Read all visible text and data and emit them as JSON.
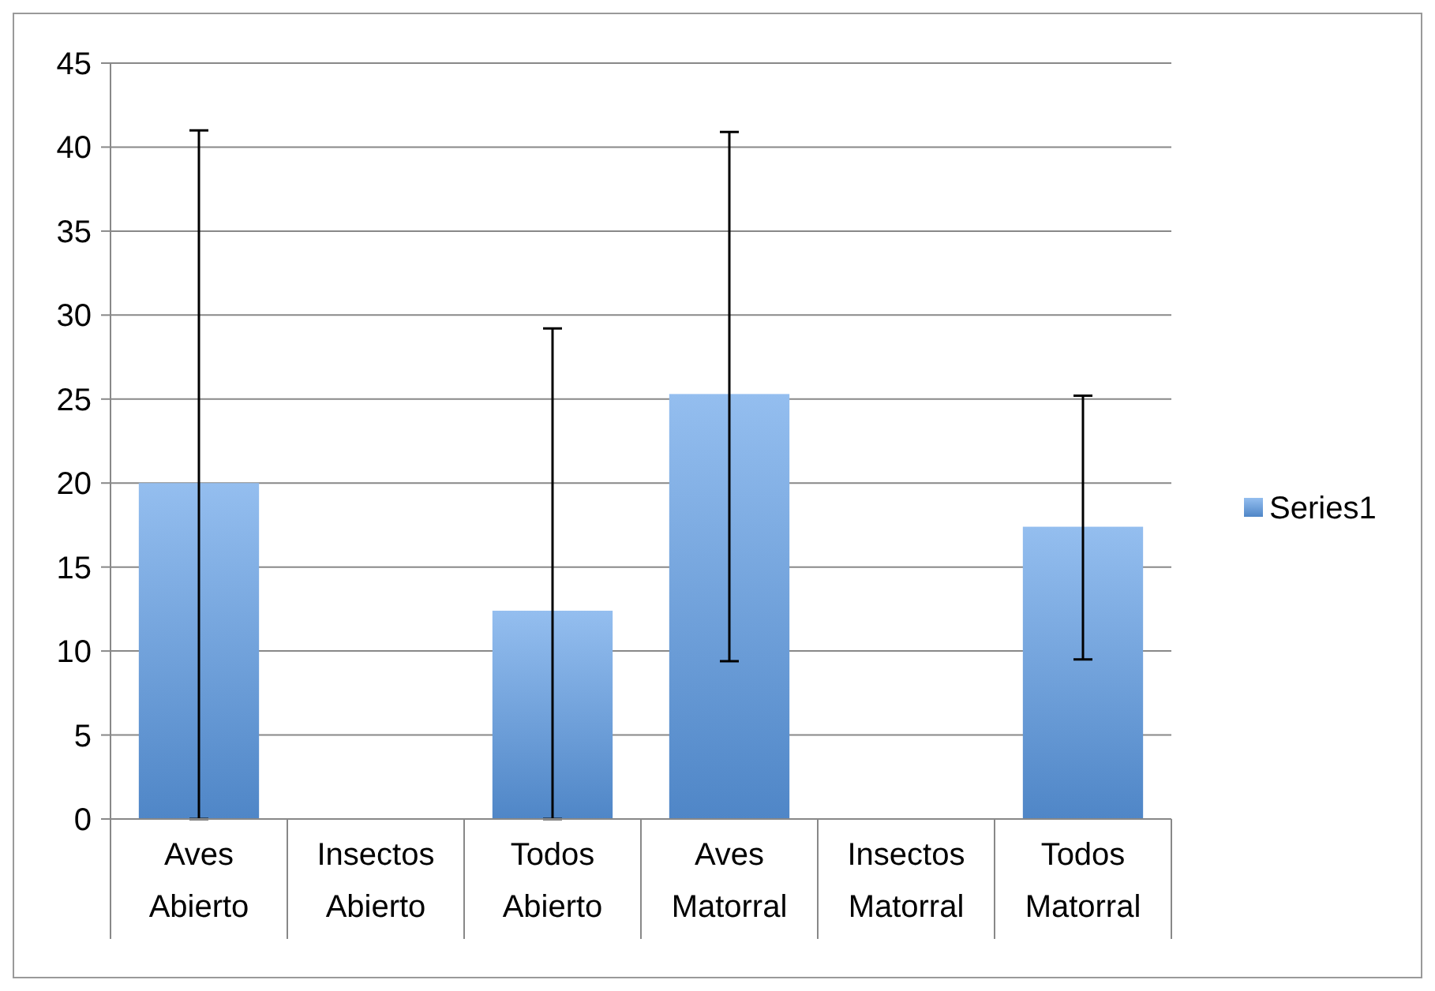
{
  "chart_data": {
    "type": "bar",
    "categories": [
      "Aves\nAbierto",
      "Insectos\nAbierto",
      "Todos\nAbierto",
      "Aves\nMatorral",
      "Insectos\nMatorral",
      "Todos\nMatorral"
    ],
    "series": [
      {
        "name": "Series1",
        "color": "#5b9be6",
        "values": [
          20,
          null,
          12.4,
          25.3,
          null,
          17.4
        ],
        "errors": [
          [
            0,
            41
          ],
          null,
          [
            0,
            29.2
          ],
          [
            9.4,
            40.9
          ],
          null,
          [
            9.5,
            25.2
          ]
        ]
      }
    ],
    "ylim": [
      0,
      45
    ],
    "yticks": [
      0,
      5,
      10,
      15,
      20,
      25,
      30,
      35,
      40,
      45
    ],
    "grid": "y",
    "legend": "right"
  }
}
